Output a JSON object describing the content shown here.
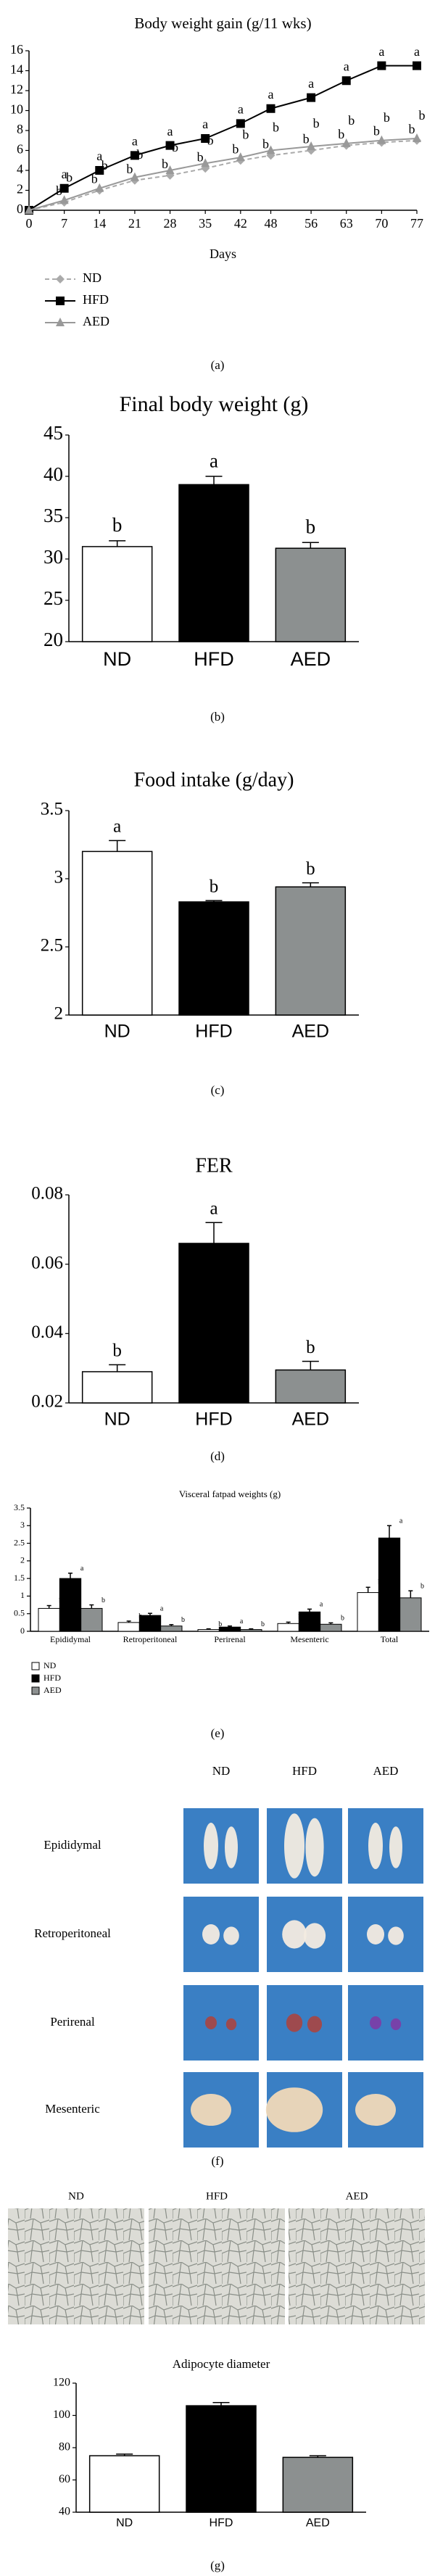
{
  "chart_data": [
    {
      "type": "line",
      "title": "Body weight gain (g/11 wks)",
      "x_label": "Days",
      "x": [
        0,
        7,
        14,
        21,
        28,
        35,
        42,
        48,
        56,
        63,
        70,
        77
      ],
      "xlim": [
        0,
        77
      ],
      "xticks": [
        0,
        7,
        14,
        21,
        28,
        35,
        42,
        48,
        56,
        63,
        70,
        77
      ],
      "ylim": [
        0,
        16
      ],
      "yticks": [
        0,
        2,
        4,
        6,
        8,
        10,
        12,
        14,
        16
      ],
      "legend": "bottom-left",
      "series": [
        {
          "name": "ND",
          "color": "#aaaaaa",
          "marker": "diamond",
          "dashed": true,
          "values": [
            0,
            0.8,
            2,
            3,
            3.5,
            4.2,
            5,
            5.5,
            6,
            6.5,
            6.8,
            7
          ],
          "letters": [
            null,
            "b",
            "b",
            "b",
            "b",
            "b",
            "b",
            "b",
            "b",
            "b",
            "b",
            "b"
          ]
        },
        {
          "name": "HFD",
          "color": "#000000",
          "marker": "square",
          "dashed": false,
          "values": [
            0,
            2.2,
            4,
            5.5,
            6.5,
            7.2,
            8.7,
            10.2,
            11.3,
            13,
            14.5,
            14.5
          ],
          "letters": [
            null,
            "a",
            "a",
            "a",
            "a",
            "a",
            "a",
            "a",
            "a",
            "a",
            "a",
            "a"
          ]
        },
        {
          "name": "AED",
          "color": "#999999",
          "marker": "triangle",
          "dashed": false,
          "values": [
            0,
            1,
            2.2,
            3.3,
            4,
            4.7,
            5.3,
            6,
            6.4,
            6.7,
            7,
            7.2
          ],
          "letters": [
            null,
            "b",
            "b",
            "b",
            "b",
            "b",
            "b",
            "b",
            "b",
            "b",
            "b",
            "b"
          ]
        }
      ]
    },
    {
      "type": "bar",
      "title": "Final body weight (g)",
      "categories": [
        "ND",
        "HFD",
        "AED"
      ],
      "values": [
        31.5,
        39,
        31.3
      ],
      "error": [
        0.7,
        1,
        0.7
      ],
      "letters": [
        "b",
        "a",
        "b"
      ],
      "colors": [
        "#ffffff",
        "#000000",
        "#8c9090"
      ],
      "ylim": [
        20,
        45
      ],
      "yticks": [
        20,
        25,
        30,
        35,
        40,
        45
      ]
    },
    {
      "type": "bar",
      "title": "Food intake (g/day)",
      "categories": [
        "ND",
        "HFD",
        "AED"
      ],
      "values": [
        3.2,
        2.83,
        2.94
      ],
      "error": [
        0.08,
        0.01,
        0.03
      ],
      "letters": [
        "a",
        "b",
        "b"
      ],
      "colors": [
        "#ffffff",
        "#000000",
        "#8c9090"
      ],
      "ylim": [
        2,
        3.5
      ],
      "yticks": [
        2,
        2.5,
        3,
        3.5
      ]
    },
    {
      "type": "bar",
      "title": "FER",
      "categories": [
        "ND",
        "HFD",
        "AED"
      ],
      "values": [
        0.029,
        0.066,
        0.0295
      ],
      "error": [
        0.002,
        0.006,
        0.0025
      ],
      "letters": [
        "b",
        "a",
        "b"
      ],
      "colors": [
        "#ffffff",
        "#000000",
        "#8c9090"
      ],
      "ylim": [
        0.02,
        0.08
      ],
      "yticks": [
        0.02,
        0.04,
        0.06,
        0.08
      ]
    },
    {
      "type": "grouped-bar",
      "title": "Visceral fatpad weights (g)",
      "categories": [
        "Epididymal",
        "Retroperitoneal",
        "Perirenal",
        "Mesenteric",
        "Total"
      ],
      "ylim": [
        0,
        3.5
      ],
      "yticks": [
        0,
        0.5,
        1,
        1.5,
        2,
        2.5,
        3,
        3.5
      ],
      "legend": "bottom-left",
      "series": [
        {
          "name": "ND",
          "color": "#ffffff",
          "values": [
            0.65,
            0.25,
            0.05,
            0.22,
            1.1
          ],
          "error": [
            0.08,
            0.04,
            0.02,
            0.04,
            0.15
          ],
          "letters": [
            "b",
            "b",
            "b",
            "b",
            "b"
          ]
        },
        {
          "name": "HFD",
          "color": "#000000",
          "values": [
            1.5,
            0.45,
            0.12,
            0.55,
            2.65
          ],
          "error": [
            0.15,
            0.06,
            0.03,
            0.08,
            0.35
          ],
          "letters": [
            "a",
            "a",
            "a",
            "a",
            "a"
          ]
        },
        {
          "name": "AED",
          "color": "#8c9090",
          "values": [
            0.65,
            0.15,
            0.05,
            0.2,
            0.95
          ],
          "error": [
            0.1,
            0.04,
            0.02,
            0.04,
            0.2
          ],
          "letters": [
            "b",
            "b",
            "b",
            "b",
            "b"
          ]
        }
      ]
    },
    {
      "type": "bar",
      "title": "Adipocyte diameter",
      "categories": [
        "ND",
        "HFD",
        "AED"
      ],
      "values": [
        75,
        106,
        74
      ],
      "error": [
        1,
        2,
        1
      ],
      "colors": [
        "#ffffff",
        "#000000",
        "#8c9090"
      ],
      "ylim": [
        40,
        120
      ],
      "yticks": [
        40,
        60,
        80,
        100,
        120
      ]
    }
  ],
  "photo_grid": {
    "columns": [
      "ND",
      "HFD",
      "AED"
    ],
    "rows": [
      "Epididymal",
      "Retroperitoneal",
      "Perirenal",
      "Mesenteric"
    ]
  },
  "histology": {
    "columns": [
      "ND",
      "HFD",
      "AED"
    ]
  },
  "panel_labels": [
    "(a)",
    "(b)",
    "(c)",
    "(d)",
    "(e)",
    "(f)",
    "(g)"
  ]
}
